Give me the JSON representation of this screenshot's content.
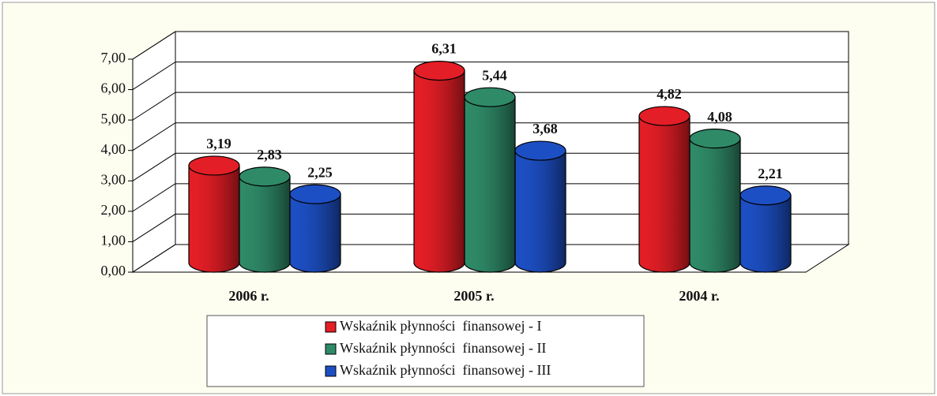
{
  "chart_data": {
    "type": "bar",
    "categories": [
      "2006 r.",
      "2005 r.",
      "2004 r."
    ],
    "series": [
      {
        "name": "Wskaźnik płynności  finansowej - I",
        "color": "#e41e26",
        "values": [
          3.19,
          6.31,
          4.82
        ],
        "value_labels": [
          "3,19",
          "6,31",
          "4,82"
        ]
      },
      {
        "name": "Wskaźnik płynności  finansowej - II",
        "color": "#2f8a68",
        "values": [
          2.83,
          5.44,
          4.08
        ],
        "value_labels": [
          "2,83",
          "5,44",
          "4,08"
        ]
      },
      {
        "name": "Wskaźnik płynności  finansowej - III",
        "color": "#1d4fc4",
        "values": [
          2.25,
          3.68,
          2.21
        ],
        "value_labels": [
          "2,25",
          "3,68",
          "2,21"
        ]
      }
    ],
    "ylim": [
      0,
      7
    ],
    "yticks": [
      {
        "value": 0,
        "label": "0,00"
      },
      {
        "value": 1,
        "label": "1,00"
      },
      {
        "value": 2,
        "label": "2,00"
      },
      {
        "value": 3,
        "label": "3,00"
      },
      {
        "value": 4,
        "label": "4,00"
      },
      {
        "value": 5,
        "label": "5,00"
      },
      {
        "value": 6,
        "label": "6,00"
      },
      {
        "value": 7,
        "label": "7,00"
      }
    ],
    "grid": true,
    "legend": "bottom"
  }
}
